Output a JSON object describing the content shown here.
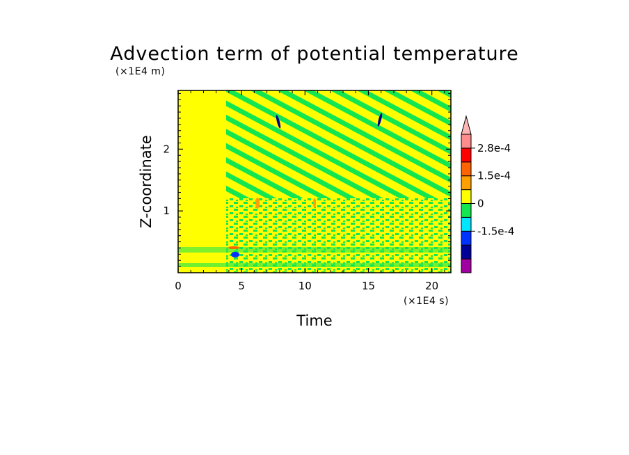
{
  "chart_data": {
    "type": "heatmap",
    "title": "Advection term of potential temperature",
    "xlabel": "Time",
    "ylabel": "Z-coordinate",
    "x_unit": "(×1E4 s)",
    "y_unit": "(×1E4 m)",
    "xlim": [
      0,
      21.5
    ],
    "ylim": [
      0,
      2.95
    ],
    "x_ticks": [
      "0",
      "5",
      "10",
      "15",
      "20"
    ],
    "x_tick_values": [
      0,
      5,
      10,
      15,
      20
    ],
    "y_ticks": [
      "1",
      "2"
    ],
    "y_tick_values": [
      1,
      2
    ],
    "colorbar": {
      "labels": [
        "2.8e-4",
        "1.5e-4",
        "0",
        "-1.5e-4"
      ],
      "colors": [
        "#a000a0",
        "#000096",
        "#0032ff",
        "#00e6ff",
        "#14e650",
        "#ffff00",
        "#ffa000",
        "#ff6400",
        "#ff0000",
        "#ff8c8c",
        "#ffb4b4"
      ]
    }
  }
}
